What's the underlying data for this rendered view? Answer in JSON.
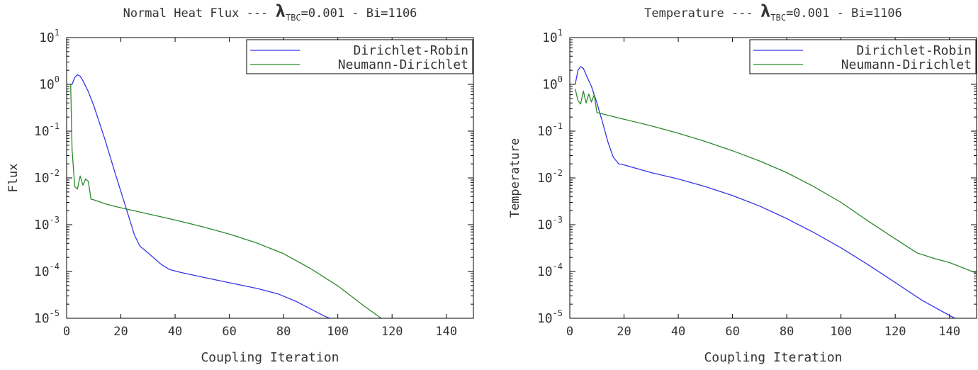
{
  "figure_title": "",
  "chart_data": [
    {
      "type": "line",
      "title_prefix": "Normal Heat Flux --- ",
      "title_lambda": "λ",
      "title_sub": "TBC",
      "title_suffix": "=0.001 - Bi=1106",
      "xlabel": "Coupling Iteration",
      "ylabel": "Flux",
      "xlim": [
        0,
        150
      ],
      "ylim": [
        1e-05,
        10
      ],
      "yscale": "log",
      "grid": false,
      "legend_position": "top-right",
      "x_ticks": [
        "0",
        "20",
        "40",
        "60",
        "80",
        "100",
        "120",
        "140"
      ],
      "y_tick_exponents": [
        "-5",
        "-4",
        "-3",
        "-2",
        "-1",
        "0",
        "1"
      ],
      "series": [
        {
          "name": "Dirichlet-Robin",
          "color": "#3535e8",
          "x": [
            2,
            3,
            4,
            5,
            6,
            8,
            10,
            14,
            18,
            22,
            25,
            27,
            30,
            35,
            38,
            42,
            50,
            60,
            70,
            78,
            85,
            90,
            95,
            97
          ],
          "y": [
            1.0,
            1.4,
            1.6,
            1.5,
            1.2,
            0.7,
            0.35,
            0.07,
            0.012,
            0.0022,
            0.0006,
            0.00035,
            0.00025,
            0.00014,
            0.00011,
            9.55e-05,
            7.59e-05,
            5.75e-05,
            4.37e-05,
            3.31e-05,
            2.24e-05,
            1.58e-05,
            1.12e-05,
            1e-05
          ]
        },
        {
          "name": "Neumann-Dirichlet",
          "color": "#2a8a2a",
          "x": [
            1.5,
            2,
            3,
            4,
            5,
            6,
            7,
            8,
            9,
            10,
            15,
            20,
            30,
            40,
            50,
            60,
            70,
            80,
            90,
            100,
            110,
            116
          ],
          "y": [
            1.0,
            0.04,
            0.0065,
            0.0058,
            0.011,
            0.007,
            0.0095,
            0.0085,
            0.0035,
            0.0034,
            0.0027,
            0.0023,
            0.0017,
            0.00126,
            0.00091,
            0.00063,
            0.00041,
            0.00024,
            0.000115,
            4.9e-05,
            1.77e-05,
            1e-05
          ]
        }
      ]
    },
    {
      "type": "line",
      "title_prefix": "Temperature --- ",
      "title_lambda": "λ",
      "title_sub": "TBC",
      "title_suffix": "=0.001 - Bi=1106",
      "xlabel": "Coupling Iteration",
      "ylabel": "Temperature",
      "xlim": [
        0,
        150
      ],
      "ylim": [
        1e-05,
        10
      ],
      "yscale": "log",
      "grid": false,
      "legend_position": "top-right",
      "x_ticks": [
        "0",
        "20",
        "40",
        "60",
        "80",
        "100",
        "120",
        "140"
      ],
      "y_tick_exponents": [
        "-5",
        "-4",
        "-3",
        "-2",
        "-1",
        "0",
        "1"
      ],
      "series": [
        {
          "name": "Dirichlet-Robin",
          "color": "#3535e8",
          "x": [
            2,
            3,
            4,
            5,
            6,
            8,
            10,
            12,
            14,
            16,
            18,
            20,
            30,
            40,
            50,
            60,
            70,
            80,
            90,
            100,
            110,
            120,
            130,
            140,
            142
          ],
          "y": [
            1.0,
            2.0,
            2.4,
            2.2,
            1.6,
            0.9,
            0.4,
            0.16,
            0.06,
            0.028,
            0.02,
            0.019,
            0.013,
            0.0095,
            0.0065,
            0.0042,
            0.0025,
            0.00135,
            0.00068,
            0.00032,
            0.00014,
            5.8e-05,
            2.4e-05,
            1.15e-05,
            1e-05
          ]
        },
        {
          "name": "Neumann-Dirichlet",
          "color": "#2a8a2a",
          "x": [
            2,
            3,
            4,
            5,
            6,
            7,
            8,
            9,
            10,
            20,
            30,
            40,
            50,
            60,
            70,
            80,
            90,
            100,
            110,
            120,
            128,
            135,
            140,
            150
          ],
          "y": [
            0.8,
            0.45,
            0.38,
            0.72,
            0.4,
            0.62,
            0.42,
            0.6,
            0.25,
            0.18,
            0.13,
            0.09,
            0.06,
            0.038,
            0.023,
            0.013,
            0.0065,
            0.003,
            0.0012,
            0.0005,
            0.00025,
            0.000185,
            0.000155,
            9.2e-05
          ]
        }
      ]
    }
  ]
}
